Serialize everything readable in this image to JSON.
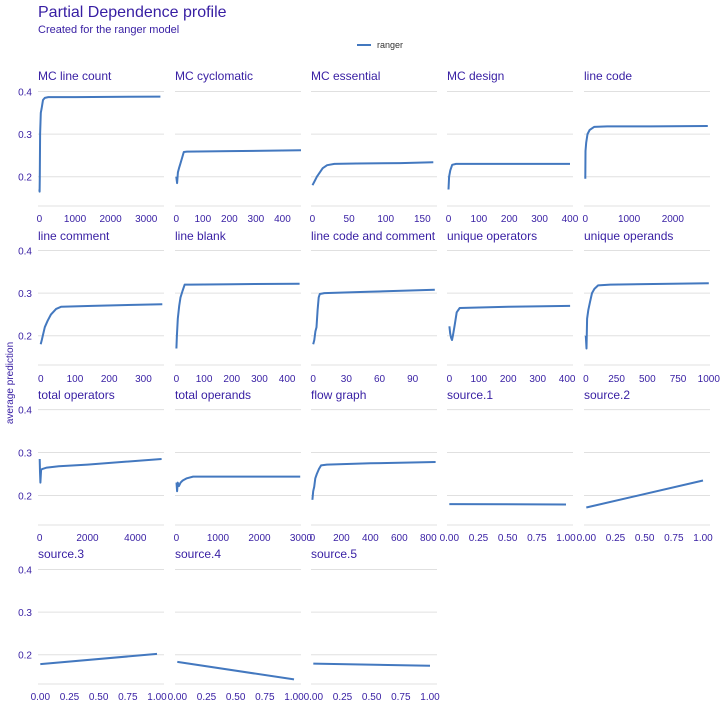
{
  "header": {
    "title": "Partial Dependence profile",
    "subtitle": "Created for the ranger model"
  },
  "legend": {
    "label": "ranger",
    "color": "#4378bf",
    "position": "top-center"
  },
  "chart_data": {
    "type": "line",
    "title": "Partial Dependence profile",
    "subtitle": "Created for the ranger model",
    "ylabel": "average prediction",
    "ylim": [
      0.15,
      0.42
    ],
    "yticks": [
      0.2,
      0.3,
      0.4
    ],
    "grid": true,
    "series_name": "ranger",
    "line_color": "#4378bf",
    "panels": [
      {
        "title": "MC_line_count",
        "display_title": "MC  line  count",
        "xticks": [
          0,
          1000,
          2000,
          3000
        ],
        "xtick_labels": [
          "0",
          "1000",
          "2000",
          "3000"
        ],
        "xlim": [
          -40,
          3500
        ],
        "points": [
          [
            0,
            0.17
          ],
          [
            5,
            0.165
          ],
          [
            10,
            0.2
          ],
          [
            20,
            0.3
          ],
          [
            40,
            0.35
          ],
          [
            60,
            0.36
          ],
          [
            80,
            0.37
          ],
          [
            100,
            0.38
          ],
          [
            150,
            0.385
          ],
          [
            250,
            0.387
          ],
          [
            1000,
            0.387
          ],
          [
            3400,
            0.388
          ]
        ]
      },
      {
        "title": "MC_cyclomatic",
        "display_title": "MC  cyclomatic",
        "xticks": [
          0,
          100,
          200,
          300,
          400
        ],
        "xtick_labels": [
          "0",
          "100",
          "200",
          "300",
          "400"
        ],
        "xlim": [
          -5,
          470
        ],
        "points": [
          [
            0,
            0.2
          ],
          [
            3,
            0.185
          ],
          [
            6,
            0.21
          ],
          [
            10,
            0.22
          ],
          [
            15,
            0.23
          ],
          [
            22,
            0.245
          ],
          [
            28,
            0.258
          ],
          [
            40,
            0.259
          ],
          [
            200,
            0.26
          ],
          [
            470,
            0.262
          ]
        ]
      },
      {
        "title": "MC_essential",
        "display_title": "MC  essential",
        "xticks": [
          0,
          50,
          100,
          150
        ],
        "xtick_labels": [
          "0",
          "50",
          "100",
          "150"
        ],
        "xlim": [
          -2,
          170
        ],
        "points": [
          [
            0,
            0.18
          ],
          [
            3,
            0.19
          ],
          [
            6,
            0.2
          ],
          [
            10,
            0.21
          ],
          [
            14,
            0.22
          ],
          [
            20,
            0.227
          ],
          [
            30,
            0.23
          ],
          [
            60,
            0.231
          ],
          [
            120,
            0.232
          ],
          [
            165,
            0.234
          ]
        ]
      },
      {
        "title": "MC_design",
        "display_title": "MC  design",
        "xticks": [
          0,
          100,
          200,
          300,
          400
        ],
        "xtick_labels": [
          "0",
          "100",
          "200",
          "300",
          "400"
        ],
        "xlim": [
          -5,
          410
        ],
        "points": [
          [
            0,
            0.17
          ],
          [
            2,
            0.2
          ],
          [
            6,
            0.215
          ],
          [
            12,
            0.228
          ],
          [
            25,
            0.23
          ],
          [
            100,
            0.23
          ],
          [
            250,
            0.23
          ],
          [
            400,
            0.23
          ]
        ]
      },
      {
        "title": "line_code",
        "display_title": "line  code",
        "xticks": [
          0,
          1000,
          2000
        ],
        "xtick_labels": [
          "0",
          "1000",
          "2000"
        ],
        "xlim": [
          -30,
          2850
        ],
        "points": [
          [
            0,
            0.195
          ],
          [
            5,
            0.26
          ],
          [
            20,
            0.28
          ],
          [
            50,
            0.3
          ],
          [
            100,
            0.31
          ],
          [
            200,
            0.317
          ],
          [
            500,
            0.318
          ],
          [
            1500,
            0.318
          ],
          [
            2800,
            0.319
          ]
        ]
      },
      {
        "title": "line_comment",
        "display_title": "line  comment",
        "xticks": [
          0,
          100,
          200,
          300
        ],
        "xtick_labels": [
          "0",
          "100",
          "200",
          "300"
        ],
        "xlim": [
          -8,
          360
        ],
        "points": [
          [
            0,
            0.18
          ],
          [
            3,
            0.19
          ],
          [
            6,
            0.2
          ],
          [
            12,
            0.22
          ],
          [
            20,
            0.235
          ],
          [
            30,
            0.25
          ],
          [
            45,
            0.263
          ],
          [
            60,
            0.268
          ],
          [
            150,
            0.27
          ],
          [
            355,
            0.274
          ]
        ]
      },
      {
        "title": "line_blank",
        "display_title": "line  blank",
        "xticks": [
          0,
          100,
          200,
          300,
          400
        ],
        "xtick_labels": [
          "0",
          "100",
          "200",
          "300",
          "400"
        ],
        "xlim": [
          -5,
          450
        ],
        "points": [
          [
            0,
            0.17
          ],
          [
            2,
            0.2
          ],
          [
            5,
            0.24
          ],
          [
            10,
            0.27
          ],
          [
            15,
            0.29
          ],
          [
            22,
            0.305
          ],
          [
            30,
            0.32
          ],
          [
            50,
            0.32
          ],
          [
            200,
            0.321
          ],
          [
            445,
            0.322
          ]
        ]
      },
      {
        "title": "line_code_and_comment",
        "display_title": "line  code  and  comment",
        "xticks": [
          0,
          30,
          60,
          90
        ],
        "xtick_labels": [
          "0",
          "30",
          "60",
          "90"
        ],
        "xlim": [
          -2,
          112
        ],
        "points": [
          [
            0,
            0.18
          ],
          [
            1,
            0.19
          ],
          [
            2,
            0.21
          ],
          [
            3,
            0.22
          ],
          [
            4,
            0.26
          ],
          [
            5,
            0.29
          ],
          [
            6,
            0.298
          ],
          [
            10,
            0.3
          ],
          [
            50,
            0.303
          ],
          [
            110,
            0.308
          ]
        ]
      },
      {
        "title": "unique_operators",
        "display_title": "unique  operators",
        "xticks": [
          0,
          100,
          200,
          300,
          400
        ],
        "xtick_labels": [
          "0",
          "100",
          "200",
          "300",
          "400"
        ],
        "xlim": [
          -8,
          420
        ],
        "points": [
          [
            0,
            0.222
          ],
          [
            3,
            0.205
          ],
          [
            6,
            0.195
          ],
          [
            9,
            0.19
          ],
          [
            12,
            0.2
          ],
          [
            18,
            0.225
          ],
          [
            25,
            0.255
          ],
          [
            35,
            0.265
          ],
          [
            200,
            0.268
          ],
          [
            410,
            0.27
          ]
        ]
      },
      {
        "title": "unique_operands",
        "display_title": "unique  operands",
        "xticks": [
          0,
          250,
          500,
          750,
          1000
        ],
        "xtick_labels": [
          "0",
          "250",
          "500",
          "750",
          "1000"
        ],
        "xlim": [
          -15,
          1010
        ],
        "points": [
          [
            0,
            0.2
          ],
          [
            5,
            0.17
          ],
          [
            10,
            0.24
          ],
          [
            20,
            0.26
          ],
          [
            35,
            0.28
          ],
          [
            50,
            0.3
          ],
          [
            70,
            0.31
          ],
          [
            100,
            0.318
          ],
          [
            200,
            0.32
          ],
          [
            1000,
            0.323
          ]
        ]
      },
      {
        "title": "total_operators",
        "display_title": "total  operators",
        "xticks": [
          0,
          2000,
          4000
        ],
        "xtick_labels": [
          "0",
          "2000",
          "4000"
        ],
        "xlim": [
          -70,
          5200
        ],
        "points": [
          [
            0,
            0.285
          ],
          [
            15,
            0.255
          ],
          [
            30,
            0.23
          ],
          [
            60,
            0.26
          ],
          [
            120,
            0.262
          ],
          [
            300,
            0.265
          ],
          [
            800,
            0.268
          ],
          [
            2000,
            0.272
          ],
          [
            5100,
            0.285
          ]
        ]
      },
      {
        "title": "total_operands",
        "display_title": "total  operands",
        "xticks": [
          0,
          1000,
          2000,
          3000
        ],
        "xtick_labels": [
          "0",
          "1000",
          "2000",
          "3000"
        ],
        "xlim": [
          -35,
          3000
        ],
        "points": [
          [
            0,
            0.23
          ],
          [
            15,
            0.21
          ],
          [
            30,
            0.23
          ],
          [
            60,
            0.222
          ],
          [
            100,
            0.23
          ],
          [
            150,
            0.235
          ],
          [
            250,
            0.24
          ],
          [
            400,
            0.244
          ],
          [
            1500,
            0.244
          ],
          [
            2980,
            0.244
          ]
        ]
      },
      {
        "title": "flow_graph",
        "display_title": "flow  graph",
        "xticks": [
          0,
          200,
          400,
          600,
          800
        ],
        "xtick_labels": [
          "0",
          "200",
          "400",
          "600",
          "800"
        ],
        "xlim": [
          -10,
          860
        ],
        "points": [
          [
            0,
            0.19
          ],
          [
            5,
            0.21
          ],
          [
            12,
            0.22
          ],
          [
            20,
            0.24
          ],
          [
            30,
            0.25
          ],
          [
            45,
            0.262
          ],
          [
            60,
            0.27
          ],
          [
            100,
            0.272
          ],
          [
            400,
            0.275
          ],
          [
            850,
            0.278
          ]
        ]
      },
      {
        "title": "source.1",
        "display_title": "source.1",
        "xticks": [
          0,
          0.25,
          0.5,
          0.75,
          1
        ],
        "xtick_labels": [
          "0.00",
          "0.25",
          "0.50",
          "0.75",
          "1.00"
        ],
        "xlim": [
          -0.02,
          1.06
        ],
        "points": [
          [
            0,
            0.18
          ],
          [
            1,
            0.179
          ]
        ]
      },
      {
        "title": "source.2",
        "display_title": "source.2",
        "xticks": [
          0,
          0.25,
          0.5,
          0.75,
          1
        ],
        "xtick_labels": [
          "0.00",
          "0.25",
          "0.50",
          "0.75",
          "1.00"
        ],
        "xlim": [
          -0.02,
          1.06
        ],
        "points": [
          [
            0,
            0.172
          ],
          [
            1,
            0.235
          ]
        ]
      },
      {
        "title": "source.3",
        "display_title": "source.3",
        "xticks": [
          0,
          0.25,
          0.5,
          0.75,
          1
        ],
        "xtick_labels": [
          "0.00",
          "0.25",
          "0.50",
          "0.75",
          "1.00"
        ],
        "xlim": [
          -0.02,
          1.06
        ],
        "points": [
          [
            0,
            0.178
          ],
          [
            1,
            0.202
          ]
        ]
      },
      {
        "title": "source.4",
        "display_title": "source.4",
        "xticks": [
          0,
          0.25,
          0.5,
          0.75,
          1
        ],
        "xtick_labels": [
          "0.00",
          "0.25",
          "0.50",
          "0.75",
          "1.00"
        ],
        "xlim": [
          -0.02,
          1.06
        ],
        "points": [
          [
            0,
            0.183
          ],
          [
            1,
            0.142
          ]
        ]
      },
      {
        "title": "source.5",
        "display_title": "source.5",
        "xticks": [
          0,
          0.25,
          0.5,
          0.75,
          1
        ],
        "xtick_labels": [
          "0.00",
          "0.25",
          "0.50",
          "0.75",
          "1.00"
        ],
        "xlim": [
          -0.02,
          1.06
        ],
        "points": [
          [
            0,
            0.179
          ],
          [
            1,
            0.174
          ]
        ]
      }
    ]
  }
}
